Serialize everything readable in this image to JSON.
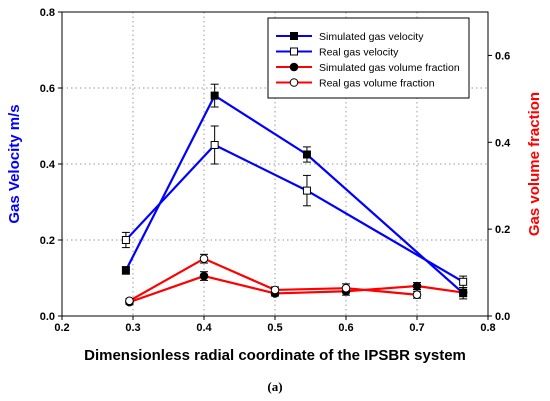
{
  "chart_data": {
    "type": "line",
    "xlabel": "Dimensionless radial coordinate of the IPSBR system",
    "ylabel_left": "Gas Velocity m/s",
    "ylabel_right": "Gas volume fraction",
    "xlim": [
      0.2,
      0.8
    ],
    "ylim_left": [
      0.0,
      0.8
    ],
    "ylim_right": [
      0.0,
      0.7
    ],
    "xticks": [
      "0.2",
      "0.3",
      "0.4",
      "0.5",
      "0.6",
      "0.7",
      "0.8"
    ],
    "yticks_left": [
      "0.0",
      "0.2",
      "0.4",
      "0.6",
      "0.8"
    ],
    "yticks_right": [
      "0.0",
      "0.2",
      "0.4",
      "0.6"
    ],
    "grid": "dotted",
    "legend_position": "top-right",
    "caption": "(a)",
    "series": [
      {
        "name": "Simulated gas velocity",
        "axis": "left",
        "color": "#0000ff",
        "marker": "filled-square",
        "x": [
          0.29,
          0.415,
          0.545,
          0.765
        ],
        "y": [
          0.12,
          0.58,
          0.425,
          0.06
        ],
        "err": [
          0.01,
          0.03,
          0.02,
          0.015
        ]
      },
      {
        "name": "Real gas velocity",
        "axis": "left",
        "color": "#0000ff",
        "marker": "open-square",
        "x": [
          0.29,
          0.415,
          0.545,
          0.765
        ],
        "y": [
          0.2,
          0.45,
          0.33,
          0.09
        ],
        "err": [
          0.02,
          0.05,
          0.04,
          0.015
        ]
      },
      {
        "name": "Simulated gas volume fraction",
        "axis": "right",
        "color": "#ff0000",
        "marker": "filled-circle",
        "x": [
          0.295,
          0.4,
          0.5,
          0.6,
          0.7,
          0.765
        ],
        "y": [
          0.032,
          0.092,
          0.052,
          0.057,
          0.069,
          0.054
        ],
        "err": [
          0.005,
          0.01,
          0.006,
          0.009,
          0.008,
          0.008
        ]
      },
      {
        "name": "Real gas volume fraction",
        "axis": "right",
        "color": "#ff0000",
        "marker": "open-circle",
        "x": [
          0.295,
          0.4,
          0.5,
          0.6,
          0.7
        ],
        "y": [
          0.035,
          0.132,
          0.06,
          0.064,
          0.049
        ],
        "err": [
          0.005,
          0.01,
          0.007,
          0.01,
          0.008
        ]
      }
    ]
  }
}
